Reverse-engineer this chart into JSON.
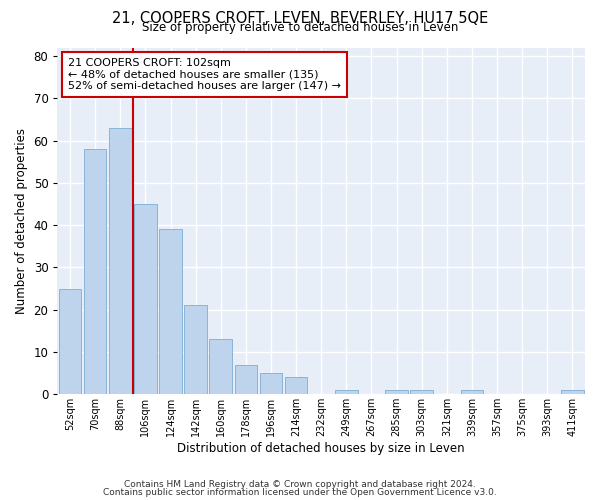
{
  "title": "21, COOPERS CROFT, LEVEN, BEVERLEY, HU17 5QE",
  "subtitle": "Size of property relative to detached houses in Leven",
  "xlabel": "Distribution of detached houses by size in Leven",
  "ylabel": "Number of detached properties",
  "bar_color": "#bdd4ec",
  "bar_edge_color": "#7aadd4",
  "background_color": "#e8eef8",
  "grid_color": "#ffffff",
  "categories": [
    "52sqm",
    "70sqm",
    "88sqm",
    "106sqm",
    "124sqm",
    "142sqm",
    "160sqm",
    "178sqm",
    "196sqm",
    "214sqm",
    "232sqm",
    "249sqm",
    "267sqm",
    "285sqm",
    "303sqm",
    "321sqm",
    "339sqm",
    "357sqm",
    "375sqm",
    "393sqm",
    "411sqm"
  ],
  "values": [
    25,
    58,
    63,
    45,
    39,
    21,
    13,
    7,
    5,
    4,
    0,
    1,
    0,
    1,
    1,
    0,
    1,
    0,
    0,
    0,
    1
  ],
  "property_line_color": "#cc0000",
  "annotation_text": "21 COOPERS CROFT: 102sqm\n← 48% of detached houses are smaller (135)\n52% of semi-detached houses are larger (147) →",
  "annotation_box_color": "#ffffff",
  "annotation_box_edge": "#cc0000",
  "ylim": [
    0,
    82
  ],
  "yticks": [
    0,
    10,
    20,
    30,
    40,
    50,
    60,
    70,
    80
  ],
  "footer1": "Contains HM Land Registry data © Crown copyright and database right 2024.",
  "footer2": "Contains public sector information licensed under the Open Government Licence v3.0."
}
